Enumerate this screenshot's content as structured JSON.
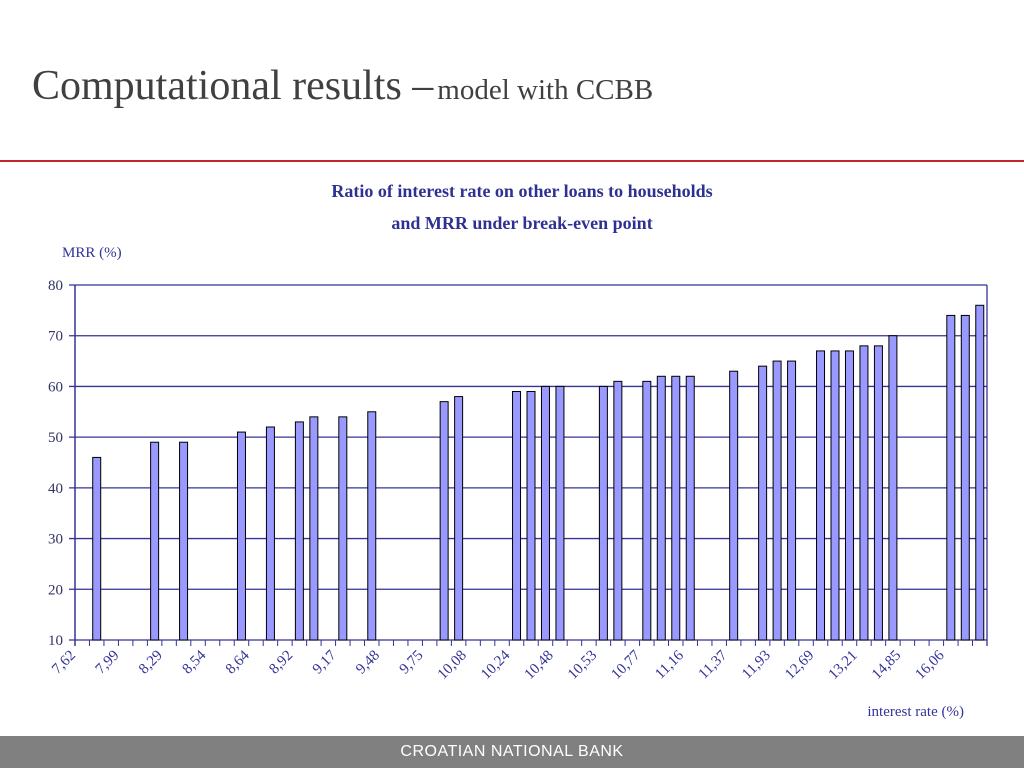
{
  "slide": {
    "title": "Computational results –",
    "subtitle": "model with CCBB",
    "footer": "CROATIAN NATIONAL BANK",
    "accent_color": "#c0272d"
  },
  "chart_data": {
    "type": "bar",
    "title_line1": "Ratio of interest rate on other loans to households",
    "title_line2": "and MRR under break-even point",
    "ylabel": "MRR (%)",
    "xlabel": "interest rate (%)",
    "ylim": [
      10,
      80
    ],
    "yticks": [
      10,
      20,
      30,
      40,
      50,
      60,
      70,
      80
    ],
    "grid": true,
    "bar_color": "#9999ff",
    "axis_color": "#333399",
    "categories": [
      "7,62",
      "",
      "",
      "7,99",
      "",
      "",
      "8,29",
      "",
      "",
      "8,54",
      "",
      "",
      "8,64",
      "",
      "",
      "8,92",
      "",
      "",
      "9,17",
      "",
      "",
      "9,48",
      "",
      "",
      "9,75",
      "",
      "",
      "10,08",
      "",
      "",
      "10,24",
      "",
      "",
      "10,48",
      "",
      "",
      "10,53",
      "",
      "",
      "10,77",
      "",
      "",
      "11,16",
      "",
      "",
      "11,37",
      "",
      "",
      "11,93",
      "",
      "",
      "12,69",
      "",
      "",
      "13,21",
      "",
      "",
      "14,85",
      "",
      "",
      "16,06",
      "",
      ""
    ],
    "values": [
      null,
      46,
      null,
      null,
      null,
      49,
      null,
      49,
      null,
      null,
      null,
      51,
      null,
      52,
      null,
      53,
      54,
      null,
      54,
      null,
      55,
      null,
      null,
      null,
      null,
      57,
      58,
      null,
      null,
      null,
      59,
      59,
      60,
      60,
      null,
      null,
      60,
      61,
      null,
      61,
      62,
      62,
      62,
      null,
      null,
      63,
      null,
      64,
      65,
      65,
      null,
      67,
      67,
      67,
      68,
      68,
      70,
      null,
      null,
      null,
      74,
      74,
      76
    ]
  }
}
